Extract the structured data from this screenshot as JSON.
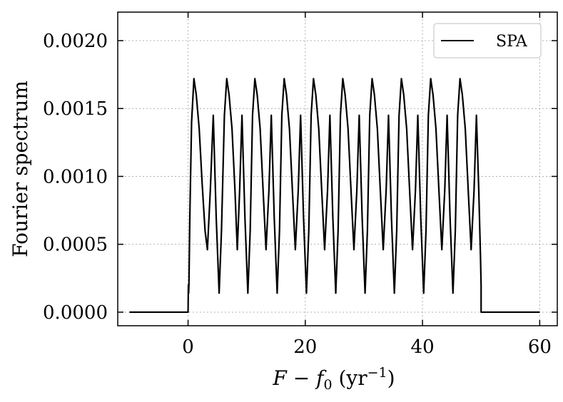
{
  "chart_data": {
    "type": "line",
    "title": "",
    "xlabel": "F − f0 (yr−1)",
    "ylabel": "Fourier spectrum",
    "xlim": [
      -12,
      63
    ],
    "ylim": [
      -0.0001,
      0.00221
    ],
    "xticks": [
      0,
      20,
      40,
      60
    ],
    "xtick_labels": [
      "0",
      "20",
      "40",
      "60"
    ],
    "yticks": [
      0.0,
      0.0005,
      0.001,
      0.0015,
      0.002
    ],
    "ytick_labels": [
      "0.0000",
      "0.0005",
      "0.0010",
      "0.0015",
      "0.0020"
    ],
    "grid": true,
    "legend": {
      "position": "top-right",
      "entries": [
        "SPA"
      ]
    },
    "series": [
      {
        "name": "SPA",
        "color": "#000000",
        "points": [
          [
            -10,
            0
          ],
          [
            0,
            0
          ],
          [
            0.05,
            0.0002
          ],
          [
            0.1,
            0.00014
          ],
          [
            0.15,
            0.0002
          ],
          [
            0.3,
            0.0007
          ],
          [
            0.6,
            0.0014
          ],
          [
            1.0,
            0.00172
          ],
          [
            1.4,
            0.0016
          ],
          [
            1.9,
            0.00135
          ],
          [
            2.4,
            0.00095
          ],
          [
            2.9,
            0.0006
          ],
          [
            3.3,
            0.00046
          ],
          [
            3.8,
            0.0009
          ],
          [
            4.3,
            0.00145
          ],
          [
            4.8,
            0.0007
          ],
          [
            5.3,
            0.00014
          ],
          [
            5.7,
            0.0006
          ],
          [
            6.2,
            0.00145
          ],
          [
            6.6,
            0.00172
          ],
          [
            7.0,
            0.0016
          ],
          [
            7.5,
            0.00135
          ],
          [
            8.0,
            0.0009
          ],
          [
            8.4,
            0.00046
          ],
          [
            8.8,
            0.0009
          ],
          [
            9.2,
            0.00145
          ],
          [
            9.7,
            0.0007
          ],
          [
            10.2,
            0.00014
          ],
          [
            10.6,
            0.0006
          ],
          [
            11.0,
            0.00145
          ],
          [
            11.4,
            0.00172
          ],
          [
            11.8,
            0.0016
          ],
          [
            12.3,
            0.00135
          ],
          [
            12.8,
            0.0009
          ],
          [
            13.3,
            0.00046
          ],
          [
            13.8,
            0.0009
          ],
          [
            14.2,
            0.00145
          ],
          [
            14.7,
            0.0007
          ],
          [
            15.2,
            0.00014
          ],
          [
            15.6,
            0.0006
          ],
          [
            16.0,
            0.00145
          ],
          [
            16.4,
            0.00172
          ],
          [
            16.8,
            0.0016
          ],
          [
            17.3,
            0.00135
          ],
          [
            17.8,
            0.0009
          ],
          [
            18.3,
            0.00046
          ],
          [
            18.8,
            0.0009
          ],
          [
            19.2,
            0.00145
          ],
          [
            19.7,
            0.0007
          ],
          [
            20.2,
            0.00014
          ],
          [
            20.6,
            0.0006
          ],
          [
            21.0,
            0.00145
          ],
          [
            21.4,
            0.00172
          ],
          [
            21.8,
            0.0016
          ],
          [
            22.3,
            0.00135
          ],
          [
            22.8,
            0.0009
          ],
          [
            23.3,
            0.00046
          ],
          [
            23.8,
            0.0009
          ],
          [
            24.2,
            0.00145
          ],
          [
            24.7,
            0.0007
          ],
          [
            25.2,
            0.00014
          ],
          [
            25.6,
            0.0006
          ],
          [
            26.0,
            0.00145
          ],
          [
            26.4,
            0.00172
          ],
          [
            26.8,
            0.0016
          ],
          [
            27.3,
            0.00135
          ],
          [
            27.8,
            0.0009
          ],
          [
            28.3,
            0.00046
          ],
          [
            28.8,
            0.0009
          ],
          [
            29.2,
            0.00145
          ],
          [
            29.7,
            0.0007
          ],
          [
            30.2,
            0.00014
          ],
          [
            30.6,
            0.0006
          ],
          [
            31.0,
            0.00145
          ],
          [
            31.4,
            0.00172
          ],
          [
            31.8,
            0.0016
          ],
          [
            32.3,
            0.00135
          ],
          [
            32.8,
            0.0009
          ],
          [
            33.3,
            0.00046
          ],
          [
            33.8,
            0.0009
          ],
          [
            34.2,
            0.00145
          ],
          [
            34.7,
            0.0007
          ],
          [
            35.2,
            0.00014
          ],
          [
            35.6,
            0.0006
          ],
          [
            36.0,
            0.00145
          ],
          [
            36.4,
            0.00172
          ],
          [
            36.8,
            0.0016
          ],
          [
            37.3,
            0.00135
          ],
          [
            37.8,
            0.0009
          ],
          [
            38.3,
            0.00046
          ],
          [
            38.8,
            0.0009
          ],
          [
            39.2,
            0.00145
          ],
          [
            39.7,
            0.0007
          ],
          [
            40.2,
            0.00014
          ],
          [
            40.6,
            0.0006
          ],
          [
            41.0,
            0.00145
          ],
          [
            41.4,
            0.00172
          ],
          [
            41.8,
            0.0016
          ],
          [
            42.3,
            0.00135
          ],
          [
            42.8,
            0.0009
          ],
          [
            43.3,
            0.00046
          ],
          [
            43.8,
            0.0009
          ],
          [
            44.2,
            0.00145
          ],
          [
            44.7,
            0.0007
          ],
          [
            45.2,
            0.00014
          ],
          [
            45.6,
            0.0006
          ],
          [
            46.0,
            0.00145
          ],
          [
            46.4,
            0.00172
          ],
          [
            46.8,
            0.0016
          ],
          [
            47.3,
            0.00135
          ],
          [
            47.8,
            0.0009
          ],
          [
            48.3,
            0.00046
          ],
          [
            48.8,
            0.0009
          ],
          [
            49.2,
            0.00145
          ],
          [
            49.6,
            0.0009
          ],
          [
            49.9,
            0.0004
          ],
          [
            50.0,
            0.0002
          ],
          [
            50.0,
            0
          ],
          [
            60,
            0
          ]
        ]
      }
    ]
  }
}
